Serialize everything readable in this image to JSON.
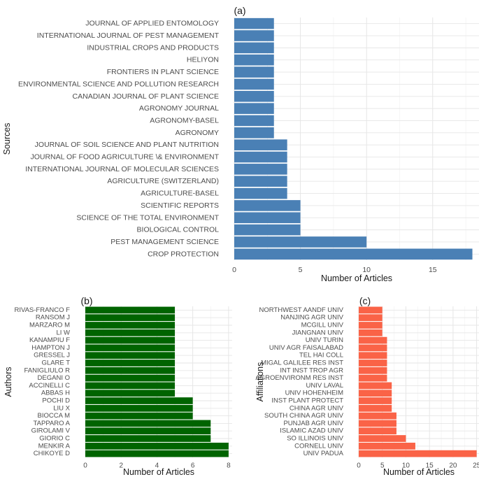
{
  "chart_data": [
    {
      "panel": "(a)",
      "type": "bar",
      "orientation": "horizontal",
      "xlabel": "Number of Articles",
      "ylabel": "Sources",
      "xlim": [
        0,
        18.5
      ],
      "xticks": [
        0,
        5,
        10,
        15
      ],
      "grid": true,
      "color": "#4a80b5",
      "categories": [
        "JOURNAL OF APPLIED ENTOMOLOGY",
        "INTERNATIONAL JOURNAL OF PEST MANAGEMENT",
        "INDUSTRIAL CROPS AND PRODUCTS",
        "HELIYON",
        "FRONTIERS IN PLANT SCIENCE",
        "ENVIRONMENTAL SCIENCE AND POLLUTION RESEARCH",
        "CANADIAN JOURNAL OF PLANT SCIENCE",
        "AGRONOMY JOURNAL",
        "AGRONOMY-BASEL",
        "AGRONOMY",
        "JOURNAL OF SOIL SCIENCE AND PLANT NUTRITION",
        "JOURNAL OF FOOD AGRICULTURE \\& ENVIRONMENT",
        "INTERNATIONAL JOURNAL OF MOLECULAR SCIENCES",
        "AGRICULTURE (SWITZERLAND)",
        "AGRICULTURE-BASEL",
        "SCIENTIFIC REPORTS",
        "SCIENCE OF THE TOTAL ENVIRONMENT",
        "BIOLOGICAL CONTROL",
        "PEST MANAGEMENT SCIENCE",
        "CROP PROTECTION"
      ],
      "values": [
        3,
        3,
        3,
        3,
        3,
        3,
        3,
        3,
        3,
        3,
        4,
        4,
        4,
        4,
        4,
        5,
        5,
        5,
        10,
        18
      ]
    },
    {
      "panel": "(b)",
      "type": "bar",
      "orientation": "horizontal",
      "xlabel": "Number of Articles",
      "ylabel": "Authors",
      "xlim": [
        0,
        8.2
      ],
      "xticks": [
        0,
        2,
        4,
        6,
        8
      ],
      "grid": true,
      "color": "#006400",
      "categories": [
        "RIVAS-FRANCO F",
        "RANSOM J",
        "MARZARO M",
        "LI W",
        "KANAMPIU F",
        "HAMPTON J",
        "GRESSEL J",
        "GLARE T",
        "FANIGLIULO R",
        "DEGANI O",
        "ACCINELLI C",
        "ABBAS H",
        "POCHI D",
        "LIU X",
        "BIOCCA M",
        "TAPPARO A",
        "GIROLAMI V",
        "GIORIO C",
        "MENKIR A",
        "CHIKOYE D"
      ],
      "values": [
        5,
        5,
        5,
        5,
        5,
        5,
        5,
        5,
        5,
        5,
        5,
        5,
        6,
        6,
        6,
        7,
        7,
        7,
        8,
        8
      ]
    },
    {
      "panel": "(c)",
      "type": "bar",
      "orientation": "horizontal",
      "xlabel": "Number of Articles",
      "ylabel": "Affiliations",
      "xlim": [
        0,
        25.5
      ],
      "xticks": [
        0,
        5,
        10,
        15,
        20,
        25
      ],
      "grid": true,
      "color": "#fa6347",
      "categories": [
        "NORTHWEST AANDF UNIV",
        "NANJING AGR UNIV",
        "MCGILL UNIV",
        "JIANGNAN UNIV",
        "UNIV TURIN",
        "UNIV AGR FAISALABAD",
        "TEL HAI COLL",
        "MIGAL GALILEE RES INST",
        "INT INST TROP AGR",
        "AGROENVIRONM RES INST",
        "UNIV LAVAL",
        "UNIV HOHENHEIM",
        "INST PLANT PROTECT",
        "CHINA AGR UNIV",
        "SOUTH CHINA AGR UNIV",
        "PUNJAB AGR UNIV",
        "ISLAMIC AZAD UNIV",
        "SO ILLINOIS UNIV",
        "CORNELL UNIV",
        "UNIV PADUA"
      ],
      "values": [
        5,
        5,
        5,
        5,
        6,
        6,
        6,
        6,
        6,
        6,
        7,
        7,
        7,
        7,
        8,
        8,
        8,
        10,
        12,
        25
      ]
    }
  ]
}
